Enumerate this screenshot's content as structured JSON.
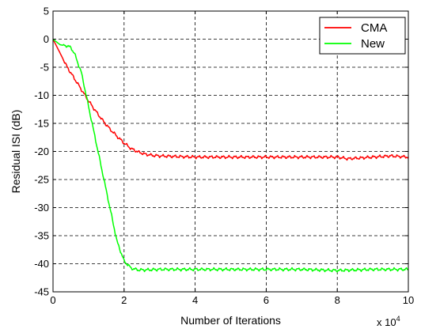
{
  "chart_data": {
    "type": "line",
    "title": "",
    "xlabel": "Number of Iterations",
    "ylabel": "Residual ISI (dB)",
    "x_multiplier_label": "x 10",
    "x_multiplier_exponent": "4",
    "xlim": [
      0,
      10
    ],
    "ylim": [
      -45,
      5
    ],
    "xticks": [
      0,
      2,
      4,
      6,
      8,
      10
    ],
    "yticks": [
      5,
      0,
      -5,
      -10,
      -15,
      -20,
      -25,
      -30,
      -35,
      -40,
      -45
    ],
    "grid": true,
    "grid_style": "dashed",
    "legend_position": "top-right",
    "series": [
      {
        "name": "CMA",
        "color": "#ff0000",
        "x": [
          0,
          0.2,
          0.4,
          0.6,
          0.8,
          1.0,
          1.2,
          1.4,
          1.6,
          1.8,
          2.0,
          2.2,
          2.4,
          2.6,
          2.8,
          3.0,
          3.5,
          4.0,
          5.0,
          6.0,
          7.0,
          8.0,
          8.3,
          9.0,
          9.5,
          10.0
        ],
        "y": [
          0,
          -2.5,
          -5,
          -7,
          -9,
          -11,
          -12.8,
          -14.5,
          -16,
          -17.3,
          -18.5,
          -19.5,
          -20.1,
          -20.5,
          -20.7,
          -20.8,
          -20.9,
          -21,
          -21,
          -21,
          -21,
          -21,
          -21.3,
          -21,
          -20.8,
          -21
        ]
      },
      {
        "name": "New",
        "color": "#00ff00",
        "x": [
          0,
          0.2,
          0.4,
          0.5,
          0.6,
          0.8,
          1.0,
          1.2,
          1.4,
          1.6,
          1.8,
          2.0,
          2.2,
          2.4,
          2.6,
          3.0,
          4.0,
          5.0,
          6.0,
          7.0,
          8.0,
          9.0,
          10.0
        ],
        "y": [
          0,
          -1,
          -1.2,
          -1.5,
          -2.5,
          -6,
          -12,
          -18,
          -24,
          -30,
          -36,
          -39.5,
          -40.8,
          -41.1,
          -41.1,
          -41,
          -41,
          -41,
          -41,
          -41,
          -41.2,
          -41,
          -41
        ]
      }
    ]
  }
}
